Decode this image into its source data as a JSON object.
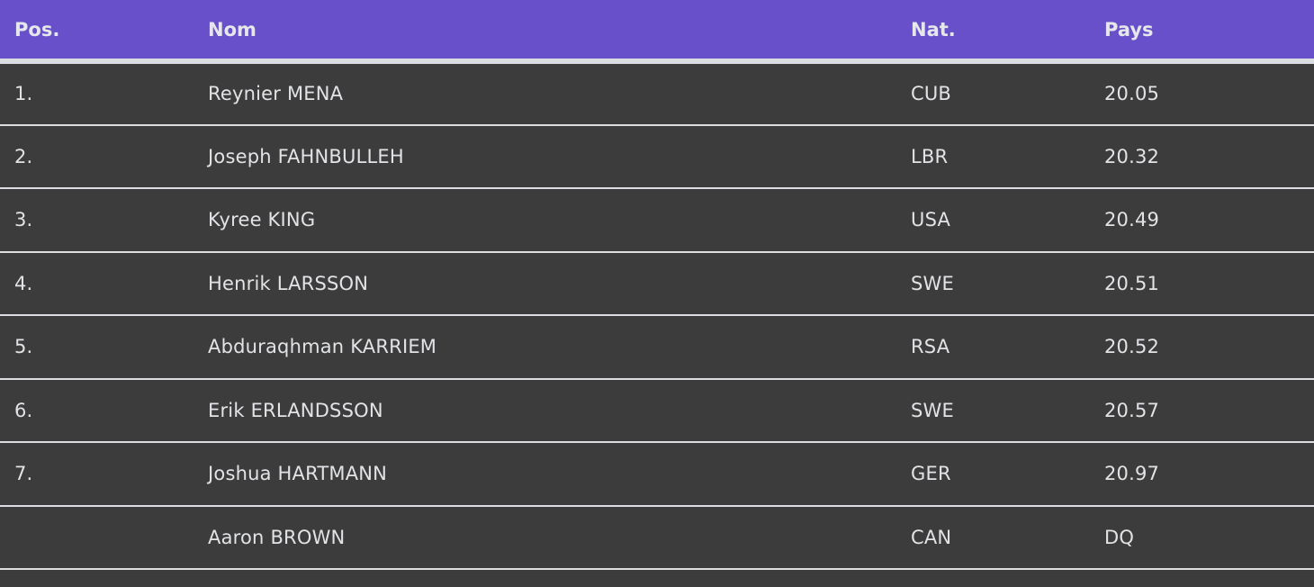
{
  "colors": {
    "header_bg": "#6750c9",
    "row_bg": "#3c3c3c",
    "text": "#e2e3e6",
    "divider": "#dcdde0"
  },
  "table": {
    "headers": [
      "Pos.",
      "Nom",
      "Nat.",
      "Pays"
    ],
    "rows": [
      {
        "pos": "1.",
        "name": "Reynier MENA",
        "nat": "CUB",
        "result": "20.05"
      },
      {
        "pos": "2.",
        "name": "Joseph FAHNBULLEH",
        "nat": "LBR",
        "result": "20.32"
      },
      {
        "pos": "3.",
        "name": "Kyree KING",
        "nat": "USA",
        "result": "20.49"
      },
      {
        "pos": "4.",
        "name": "Henrik LARSSON",
        "nat": "SWE",
        "result": "20.51"
      },
      {
        "pos": "5.",
        "name": "Abduraqhman KARRIEM",
        "nat": "RSA",
        "result": "20.52"
      },
      {
        "pos": "6.",
        "name": "Erik ERLANDSSON",
        "nat": "SWE",
        "result": "20.57"
      },
      {
        "pos": "7.",
        "name": "Joshua HARTMANN",
        "nat": "GER",
        "result": "20.97"
      },
      {
        "pos": "",
        "name": "Aaron BROWN",
        "nat": "CAN",
        "result": "DQ"
      }
    ]
  }
}
